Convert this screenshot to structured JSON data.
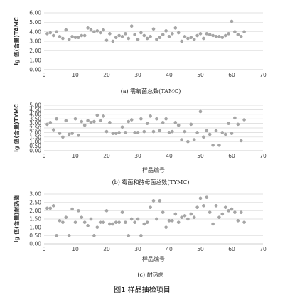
{
  "figure_caption": "图1  样品抽检项目",
  "chart_data": [
    {
      "type": "scatter",
      "caption": "(a) 需氧菌总数(TAMC)",
      "ylabel": "lg 值(含量)TAMC",
      "xlabel": "",
      "xlim": [
        0,
        70
      ],
      "ylim": [
        0,
        6
      ],
      "xticks": [
        "0",
        "10",
        "20",
        "30",
        "40",
        "50",
        "60",
        "70"
      ],
      "yticks": [
        "0.00",
        "1.00",
        "2.00",
        "3.00",
        "4.00",
        "5.00",
        "6.00"
      ],
      "grid": true,
      "x": [
        1,
        2,
        3,
        4,
        5,
        6,
        7,
        8,
        9,
        10,
        11,
        12,
        13,
        14,
        15,
        16,
        17,
        18,
        19,
        20,
        21,
        22,
        23,
        24,
        25,
        26,
        27,
        28,
        29,
        30,
        31,
        32,
        33,
        34,
        35,
        36,
        37,
        38,
        39,
        40,
        41,
        42,
        43,
        44,
        45,
        46,
        47,
        48,
        49,
        50,
        51,
        52,
        53,
        54,
        55,
        56,
        57,
        58,
        59,
        60,
        61,
        62,
        63,
        64
      ],
      "y": [
        3.8,
        3.9,
        3.6,
        4.0,
        3.5,
        3.3,
        4.2,
        3.2,
        3.5,
        3.4,
        3.4,
        3.6,
        3.6,
        4.4,
        4.2,
        4.0,
        4.1,
        3.9,
        4.2,
        3.1,
        3.8,
        3.0,
        3.4,
        3.6,
        3.5,
        3.8,
        3.3,
        4.6,
        3.7,
        3.2,
        3.9,
        3.6,
        3.3,
        3.5,
        4.3,
        3.2,
        3.4,
        3.7,
        4.1,
        3.5,
        3.8,
        4.4,
        3.9,
        3.0,
        3.5,
        3.3,
        3.4,
        3.2,
        3.6,
        3.8,
        3.3,
        3.8,
        3.7,
        3.6,
        3.5,
        3.5,
        3.4,
        3.6,
        3.8,
        5.1,
        4.0,
        3.7,
        3.5,
        4.0
      ]
    },
    {
      "type": "scatter",
      "caption": "(b) 霉菌和酵母菌总数(TYMC)",
      "ylabel": "lg 值(含量)TYMC",
      "xlabel": "样品编号",
      "xlim": [
        0,
        70
      ],
      "ylim": [
        0,
        5
      ],
      "xticks": [
        "0",
        "10",
        "20",
        "30",
        "40",
        "50",
        "60",
        "70"
      ],
      "yticks": [
        "0.00",
        "0.50",
        "1.00",
        "1.50",
        "2.00",
        "2.50",
        "3.00",
        "3.50",
        "4.00",
        "4.50",
        "5.00"
      ],
      "grid": true,
      "x": [
        1,
        2,
        3,
        4,
        5,
        6,
        7,
        8,
        9,
        10,
        11,
        12,
        13,
        14,
        15,
        16,
        17,
        18,
        19,
        20,
        21,
        22,
        23,
        24,
        25,
        26,
        27,
        28,
        29,
        30,
        31,
        32,
        33,
        34,
        35,
        36,
        37,
        38,
        39,
        40,
        41,
        42,
        43,
        44,
        45,
        46,
        47,
        48,
        49,
        50,
        51,
        52,
        53,
        54,
        55,
        56,
        57,
        58,
        59,
        60,
        61,
        62,
        63,
        64
      ],
      "y": [
        2.9,
        3.1,
        2.3,
        3.5,
        1.9,
        1.5,
        3.3,
        1.8,
        1.9,
        3.5,
        1.7,
        3.2,
        2.8,
        3.3,
        3.1,
        3.2,
        3.9,
        3.3,
        3.8,
        2.1,
        3.1,
        1.9,
        1.9,
        2.0,
        2.6,
        2.0,
        3.2,
        3.4,
        2.0,
        2.0,
        3.5,
        2.1,
        3.0,
        3.8,
        2.1,
        3.5,
        2.2,
        3.1,
        3.5,
        2.0,
        2.1,
        3.1,
        2.8,
        1.2,
        2.1,
        1.0,
        2.9,
        1.2,
        2.0,
        4.3,
        1.5,
        2.2,
        1.8,
        0.6,
        2.2,
        0.6,
        2.0,
        1.8,
        3.0,
        1.9,
        3.6,
        2.9,
        1.1,
        3.4
      ]
    },
    {
      "type": "scatter",
      "caption": "(c) 耐热菌",
      "ylabel": "lg 值(含量)耐热菌",
      "xlabel": "样品编号",
      "xlim": [
        0,
        70
      ],
      "ylim": [
        0,
        3
      ],
      "xticks": [
        "0",
        "10",
        "20",
        "30",
        "40",
        "50",
        "60",
        "70"
      ],
      "yticks": [
        "0.00",
        "0.50",
        "1.00",
        "1.50",
        "2.00",
        "2.50",
        "3.00"
      ],
      "grid": true,
      "x": [
        1,
        2,
        3,
        4,
        5,
        6,
        7,
        8,
        9,
        10,
        11,
        12,
        13,
        14,
        15,
        16,
        17,
        18,
        19,
        20,
        21,
        22,
        23,
        24,
        25,
        26,
        27,
        28,
        29,
        30,
        31,
        32,
        33,
        34,
        35,
        36,
        37,
        38,
        39,
        40,
        41,
        42,
        43,
        44,
        45,
        46,
        47,
        48,
        49,
        50,
        51,
        52,
        53,
        54,
        55,
        56,
        57,
        58,
        59,
        60,
        61,
        62,
        63,
        64
      ],
      "y": [
        2.15,
        2.15,
        2.3,
        0.5,
        1.4,
        1.3,
        1.6,
        0.5,
        2.1,
        1.3,
        2.0,
        1.6,
        1.3,
        1.1,
        1.5,
        0.5,
        1.0,
        1.3,
        1.3,
        2.0,
        1.2,
        1.2,
        1.3,
        1.3,
        1.9,
        1.3,
        0.5,
        1.5,
        1.3,
        1.5,
        0.5,
        1.2,
        1.3,
        2.2,
        2.6,
        1.5,
        2.6,
        1.9,
        1.0,
        1.4,
        1.4,
        1.8,
        1.3,
        1.6,
        1.7,
        1.5,
        1.8,
        1.6,
        2.2,
        2.75,
        2.3,
        2.8,
        1.9,
        1.2,
        2.3,
        1.6,
        1.8,
        2.2,
        2.0,
        2.1,
        1.9,
        1.4,
        1.9,
        1.3
      ]
    }
  ]
}
